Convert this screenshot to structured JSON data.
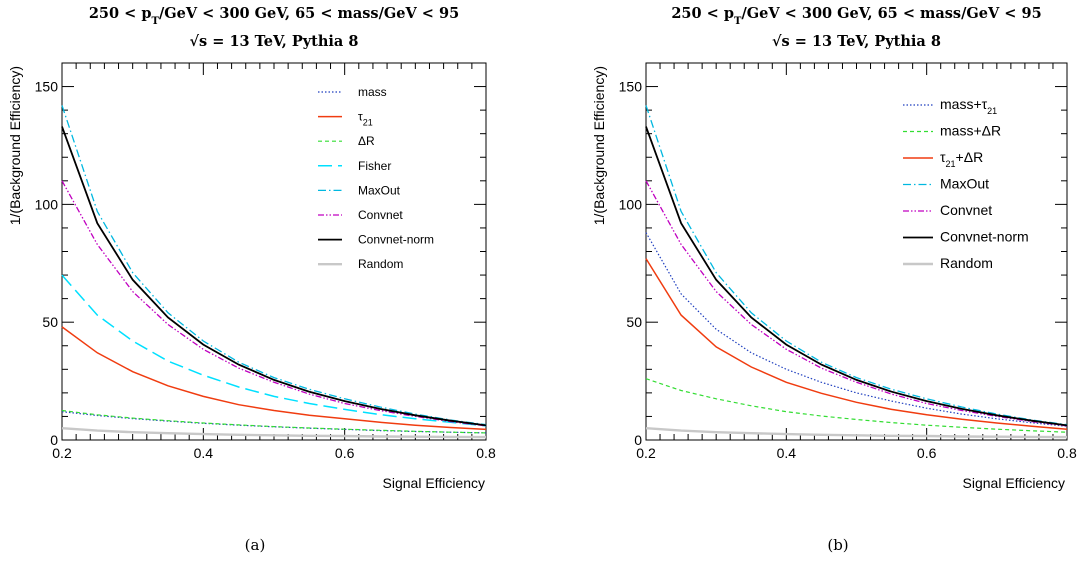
{
  "chart_data": [
    {
      "type": "line",
      "panel": "(a)",
      "title_lines": [
        "250 < p_T/GeV < 300 GeV, 65 < mass/GeV < 95",
        "√s = 13 TeV, Pythia 8"
      ],
      "xlabel": "Signal Efficiency",
      "ylabel": "1/(Background Efficiency)",
      "xlim": [
        0.2,
        0.8
      ],
      "ylim": [
        0,
        160
      ],
      "xticks": [
        0.2,
        0.4,
        0.6,
        0.8
      ],
      "yticks": [
        0,
        50,
        100,
        150
      ],
      "legend_position": "top-right",
      "x": [
        0.2,
        0.25,
        0.3,
        0.35,
        0.4,
        0.45,
        0.5,
        0.55,
        0.6,
        0.65,
        0.7,
        0.75,
        0.8
      ],
      "series": [
        {
          "name": "mass",
          "color": "#1f3fbf",
          "dash": "1.5,2",
          "width": 1.2,
          "values": [
            12,
            10.4,
            9.1,
            8,
            7.1,
            6.3,
            5.6,
            5,
            4.5,
            4,
            3.6,
            3.3,
            3
          ]
        },
        {
          "name": "τ₂₁",
          "color": "#f03c10",
          "dash": "",
          "width": 1.5,
          "values": [
            48,
            37,
            29,
            23,
            18.5,
            15,
            12.5,
            10.5,
            9,
            7.5,
            6.3,
            5.3,
            4.5
          ]
        },
        {
          "name": "ΔR",
          "color": "#33dd33",
          "dash": "4,3",
          "width": 1.2,
          "values": [
            12.5,
            10.7,
            9.3,
            8.2,
            7.2,
            6.4,
            5.7,
            5.1,
            4.6,
            4.1,
            3.7,
            3.3,
            3
          ]
        },
        {
          "name": "Fisher",
          "color": "#00e0ff",
          "dash": "14,6",
          "width": 1.5,
          "values": [
            70,
            53,
            42,
            33.5,
            27.5,
            22.5,
            18.5,
            15.5,
            13,
            10.8,
            9,
            7.5,
            6
          ]
        },
        {
          "name": "MaxOut",
          "color": "#00b8e0",
          "dash": "8,3,1.5,3",
          "width": 1.3,
          "values": [
            142,
            97,
            71,
            54,
            42,
            33,
            26.5,
            21.5,
            17.5,
            14,
            11,
            8.5,
            6.5
          ]
        },
        {
          "name": "Convnet",
          "color": "#c000c0",
          "dash": "6,2,1.5,2,1.5,2",
          "width": 1.3,
          "values": [
            110,
            83,
            63,
            49,
            38.5,
            30.5,
            24.5,
            19.5,
            15.5,
            12.5,
            10,
            7.8,
            6
          ]
        },
        {
          "name": "Convnet-norm",
          "color": "#000000",
          "dash": "",
          "width": 1.8,
          "values": [
            133,
            92,
            68,
            52,
            40.5,
            32,
            25.5,
            20.5,
            16.5,
            13.2,
            10.5,
            8.2,
            6.2
          ]
        },
        {
          "name": "Random",
          "color": "#c8c8c8",
          "dash": "",
          "width": 2.4,
          "values": [
            5,
            4,
            3.3,
            2.9,
            2.5,
            2.2,
            2,
            1.8,
            1.7,
            1.5,
            1.4,
            1.3,
            1.25
          ]
        }
      ]
    },
    {
      "type": "line",
      "panel": "(b)",
      "title_lines": [
        "250 < p_T/GeV < 300 GeV, 65 < mass/GeV < 95",
        "√s = 13 TeV, Pythia 8"
      ],
      "xlabel": "Signal Efficiency",
      "ylabel": "1/(Background Efficiency)",
      "xlim": [
        0.2,
        0.8
      ],
      "ylim": [
        0,
        160
      ],
      "xticks": [
        0.2,
        0.4,
        0.6,
        0.8
      ],
      "yticks": [
        0,
        50,
        100,
        150
      ],
      "legend_position": "top-right",
      "x": [
        0.2,
        0.25,
        0.3,
        0.35,
        0.4,
        0.45,
        0.5,
        0.55,
        0.6,
        0.65,
        0.7,
        0.75,
        0.8
      ],
      "series": [
        {
          "name": "mass+τ₂₁",
          "color": "#1f3fbf",
          "dash": "1.5,2",
          "width": 1.2,
          "values": [
            88,
            62,
            47,
            37,
            30,
            24.5,
            20,
            16.5,
            13.5,
            11,
            9,
            7.3,
            5.8
          ]
        },
        {
          "name": "mass+ΔR",
          "color": "#33dd33",
          "dash": "4,3",
          "width": 1.2,
          "values": [
            26,
            21,
            17.5,
            14.5,
            12,
            10.2,
            8.7,
            7.4,
            6.3,
            5.4,
            4.6,
            3.9,
            3.3
          ]
        },
        {
          "name": "τ₂₁+ΔR",
          "color": "#f03c10",
          "dash": "",
          "width": 1.5,
          "values": [
            77,
            53,
            39.5,
            31,
            24.5,
            19.8,
            16,
            13,
            10.7,
            8.8,
            7.2,
            5.8,
            4.6
          ]
        },
        {
          "name": "MaxOut",
          "color": "#00b8e0",
          "dash": "8,3,1.5,3",
          "width": 1.3,
          "values": [
            142,
            97,
            71,
            54,
            42,
            33,
            26.5,
            21.5,
            17.5,
            14,
            11,
            8.5,
            6.5
          ]
        },
        {
          "name": "Convnet",
          "color": "#c000c0",
          "dash": "6,2,1.5,2,1.5,2",
          "width": 1.3,
          "values": [
            110,
            83,
            63,
            49,
            38.5,
            30.5,
            24.5,
            19.5,
            15.5,
            12.5,
            10,
            7.8,
            6
          ]
        },
        {
          "name": "Convnet-norm",
          "color": "#000000",
          "dash": "",
          "width": 1.8,
          "values": [
            133,
            92,
            68,
            52,
            40.5,
            32,
            25.5,
            20.5,
            16.5,
            13.2,
            10.5,
            8.2,
            6.2
          ]
        },
        {
          "name": "Random",
          "color": "#c8c8c8",
          "dash": "",
          "width": 2.4,
          "values": [
            5,
            4,
            3.3,
            2.9,
            2.5,
            2.2,
            2,
            1.8,
            1.7,
            1.5,
            1.4,
            1.3,
            1.25
          ]
        }
      ]
    }
  ]
}
